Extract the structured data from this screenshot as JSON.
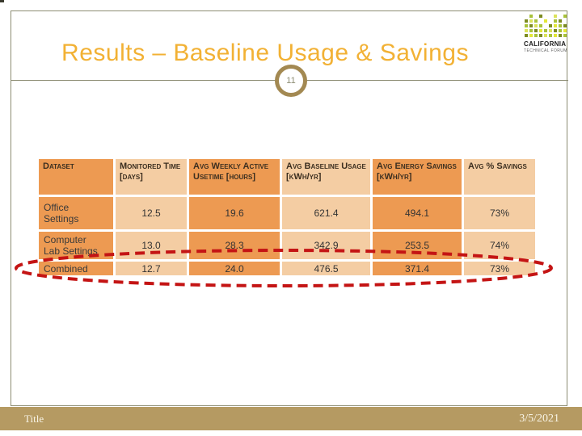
{
  "slide": {
    "title": "Results – Baseline Usage & Savings",
    "page_number": "11"
  },
  "logo": {
    "title": "CALIFORNIA",
    "subtitle": "TECHNICAL FORUM",
    "palette": [
      "",
      "#dce35b",
      "#a9c23a",
      "#7d8c21",
      "#e3e838",
      "#5f6e1a"
    ],
    "pattern": [
      [
        0,
        2,
        0,
        3,
        0,
        0,
        1,
        0,
        2
      ],
      [
        3,
        1,
        2,
        0,
        4,
        0,
        2,
        3,
        0
      ],
      [
        2,
        3,
        1,
        2,
        0,
        3,
        4,
        2,
        3
      ],
      [
        1,
        2,
        3,
        4,
        2,
        1,
        3,
        2,
        4
      ],
      [
        3,
        4,
        2,
        3,
        1,
        2,
        4,
        3,
        2
      ]
    ]
  },
  "table": {
    "headers": [
      "Dataset",
      "Monitored Time [days]",
      "Avg Weekly Active Usetime [hours]",
      "Avg Baseline Usage [kWh/yr]",
      "Avg Energy Savings [kWh/yr]",
      "Avg % Savings"
    ],
    "rows": [
      {
        "label": "Office Settings",
        "values": [
          "12.5",
          "19.6",
          "621.4",
          "494.1",
          "73%"
        ]
      },
      {
        "label": "Computer Lab Settings",
        "values": [
          "13.0",
          "28.3",
          "342.9",
          "253.5",
          "74%"
        ]
      },
      {
        "label": "Combined",
        "values": [
          "12.7",
          "24.0",
          "476.5",
          "371.4",
          "73%"
        ]
      }
    ],
    "highlight_note": "Combined row circled"
  },
  "footer": {
    "left": "Title",
    "right": "3/5/2021"
  },
  "colors": {
    "title_text": "#f2b134",
    "cell_dark": "#ed9a52",
    "cell_light": "#f4cda3",
    "frame_line": "#8c8c72",
    "badge_ring": "#a38952",
    "footer_bar": "#b59a62",
    "highlight_red": "#c41414"
  }
}
